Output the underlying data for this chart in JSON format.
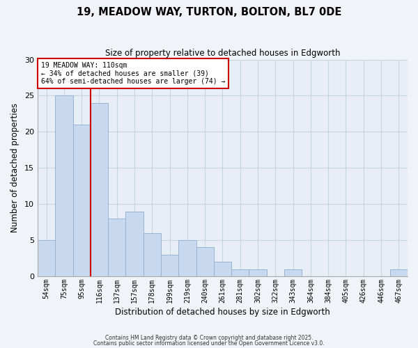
{
  "title": "19, MEADOW WAY, TURTON, BOLTON, BL7 0DE",
  "subtitle": "Size of property relative to detached houses in Edgworth",
  "xlabel": "Distribution of detached houses by size in Edgworth",
  "ylabel": "Number of detached properties",
  "bar_labels": [
    "54sqm",
    "75sqm",
    "95sqm",
    "116sqm",
    "137sqm",
    "157sqm",
    "178sqm",
    "199sqm",
    "219sqm",
    "240sqm",
    "261sqm",
    "281sqm",
    "302sqm",
    "322sqm",
    "343sqm",
    "364sqm",
    "384sqm",
    "405sqm",
    "426sqm",
    "446sqm",
    "467sqm"
  ],
  "bar_values": [
    5,
    25,
    21,
    24,
    8,
    9,
    6,
    3,
    5,
    4,
    2,
    1,
    1,
    0,
    1,
    0,
    0,
    0,
    0,
    0,
    1
  ],
  "bar_color": "#c8d8ee",
  "bar_edge_color": "#96b4d2",
  "vline_color": "#cc0000",
  "vline_position": 2.5,
  "annotation_title": "19 MEADOW WAY: 110sqm",
  "annotation_line1": "← 34% of detached houses are smaller (39)",
  "annotation_line2": "64% of semi-detached houses are larger (74) →",
  "annotation_box_color": "#ffffff",
  "annotation_box_edge": "#cc0000",
  "ylim": [
    0,
    30
  ],
  "yticks": [
    0,
    5,
    10,
    15,
    20,
    25,
    30
  ],
  "grid_color": "#c8d4e0",
  "plot_bg_color": "#e8eef6",
  "fig_bg_color": "#f0f4f8",
  "footer1": "Contains HM Land Registry data © Crown copyright and database right 2025.",
  "footer2": "Contains public sector information licensed under the Open Government Licence v3.0."
}
